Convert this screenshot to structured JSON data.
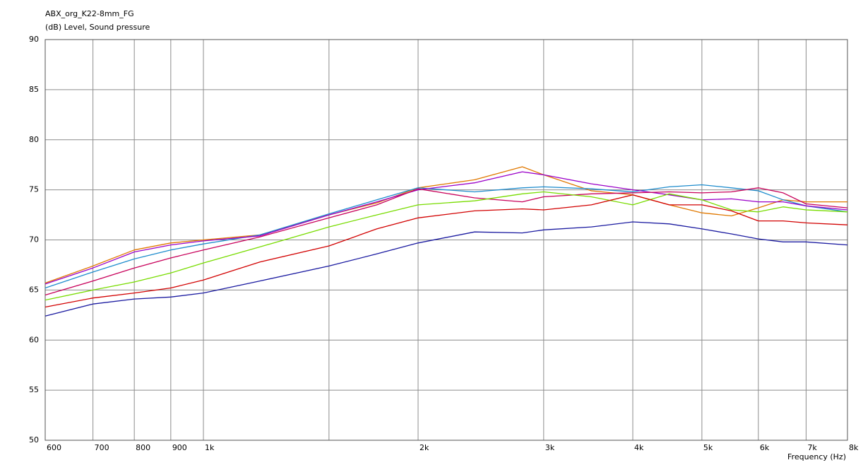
{
  "chart_data": {
    "type": "line",
    "title": "ABX_org_K22-8mm_FG",
    "y_label": "(dB)  Level, Sound pressure",
    "x_label": "Frequency  (Hz)",
    "log_x": true,
    "grid": true,
    "xlim": [
      600,
      8000
    ],
    "ylim": [
      50,
      90
    ],
    "xticks": [
      600,
      700,
      800,
      900,
      {
        "value": 1000,
        "label": "1k"
      },
      {
        "value": 1500,
        "label": null
      },
      {
        "value": 2000,
        "label": "2k"
      },
      {
        "value": 3000,
        "label": "3k"
      },
      {
        "value": 4000,
        "label": "4k"
      },
      {
        "value": 5000,
        "label": "5k"
      },
      {
        "value": 6000,
        "label": "6k"
      },
      {
        "value": 7000,
        "label": "7k"
      },
      {
        "value": 8000,
        "label": "8k"
      }
    ],
    "yticks": [
      50,
      55,
      60,
      65,
      70,
      75,
      80,
      85,
      90
    ],
    "x": [
      600,
      700,
      800,
      900,
      1000,
      1200,
      1500,
      1750,
      2000,
      2400,
      2800,
      3000,
      3500,
      4000,
      4500,
      5000,
      5500,
      6000,
      6500,
      7000,
      8000
    ],
    "series": [
      {
        "color": "#e07800",
        "values": [
          65.7,
          67.4,
          69.0,
          69.7,
          70.0,
          70.5,
          72.5,
          73.7,
          75.2,
          76.0,
          77.3,
          76.5,
          74.9,
          74.5,
          73.5,
          72.7,
          72.4,
          73.2,
          74.0,
          73.8,
          73.8
        ]
      },
      {
        "color": "#1e8ccd",
        "values": [
          65.2,
          66.8,
          68.1,
          69.0,
          69.6,
          70.5,
          72.6,
          74.0,
          75.2,
          74.8,
          75.2,
          75.3,
          75.1,
          74.8,
          75.3,
          75.5,
          75.2,
          74.9,
          74.0,
          73.4,
          72.8
        ]
      },
      {
        "color": "#9a00c8",
        "values": [
          65.6,
          67.2,
          68.8,
          69.5,
          69.9,
          70.4,
          72.5,
          73.8,
          75.0,
          75.7,
          76.8,
          76.5,
          75.6,
          75.0,
          74.5,
          74.0,
          74.1,
          73.8,
          73.8,
          73.4,
          73.0
        ]
      },
      {
        "color": "#c8005a",
        "values": [
          64.5,
          65.9,
          67.2,
          68.2,
          69.0,
          70.3,
          72.2,
          73.5,
          75.1,
          74.2,
          73.8,
          74.3,
          74.6,
          74.7,
          74.8,
          74.7,
          74.8,
          75.2,
          74.7,
          73.6,
          73.2
        ]
      },
      {
        "color": "#78dc00",
        "values": [
          64.0,
          65.0,
          65.8,
          66.7,
          67.7,
          69.3,
          71.3,
          72.5,
          73.5,
          73.9,
          74.6,
          74.8,
          74.3,
          73.5,
          74.6,
          74.0,
          73.0,
          72.8,
          73.3,
          73.0,
          72.8
        ]
      },
      {
        "color": "#d20000",
        "values": [
          63.3,
          64.2,
          64.7,
          65.2,
          66.0,
          67.8,
          69.4,
          71.1,
          72.2,
          72.9,
          73.1,
          73.0,
          73.5,
          74.5,
          73.5,
          73.5,
          72.9,
          71.9,
          71.9,
          71.7,
          71.5
        ]
      },
      {
        "color": "#1a1aa0",
        "values": [
          62.4,
          63.6,
          64.1,
          64.3,
          64.7,
          65.9,
          67.4,
          68.6,
          69.7,
          70.8,
          70.7,
          71.0,
          71.3,
          71.8,
          71.6,
          71.1,
          70.6,
          70.1,
          69.8,
          69.8,
          69.5
        ]
      }
    ]
  }
}
